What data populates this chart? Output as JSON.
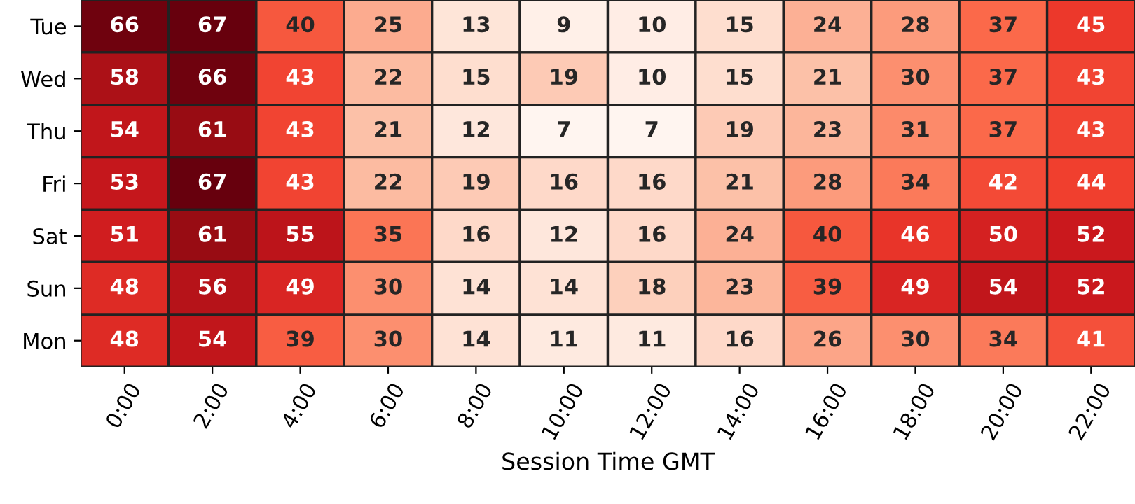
{
  "chart_data": {
    "type": "heatmap",
    "xlabel": "Session Time GMT",
    "data_labels": true,
    "categories": [
      "0:00",
      "2:00",
      "4:00",
      "6:00",
      "8:00",
      "10:00",
      "12:00",
      "14:00",
      "16:00",
      "18:00",
      "20:00",
      "22:00"
    ],
    "y_categories": [
      "Tue",
      "Wed",
      "Thu",
      "Fri",
      "Sat",
      "Sun",
      "Mon"
    ],
    "cells": [
      [
        66,
        67,
        40,
        25,
        13,
        9,
        10,
        15,
        24,
        28,
        37,
        45
      ],
      [
        58,
        66,
        43,
        22,
        15,
        19,
        10,
        15,
        21,
        30,
        37,
        43
      ],
      [
        54,
        61,
        43,
        21,
        12,
        7,
        7,
        19,
        23,
        31,
        37,
        43
      ],
      [
        53,
        67,
        43,
        22,
        19,
        16,
        16,
        21,
        28,
        34,
        42,
        44
      ],
      [
        51,
        61,
        55,
        35,
        16,
        12,
        16,
        24,
        40,
        46,
        50,
        52
      ],
      [
        48,
        56,
        49,
        30,
        14,
        14,
        18,
        23,
        39,
        49,
        54,
        52
      ],
      [
        48,
        54,
        39,
        30,
        14,
        11,
        11,
        16,
        26,
        30,
        34,
        41
      ]
    ]
  }
}
